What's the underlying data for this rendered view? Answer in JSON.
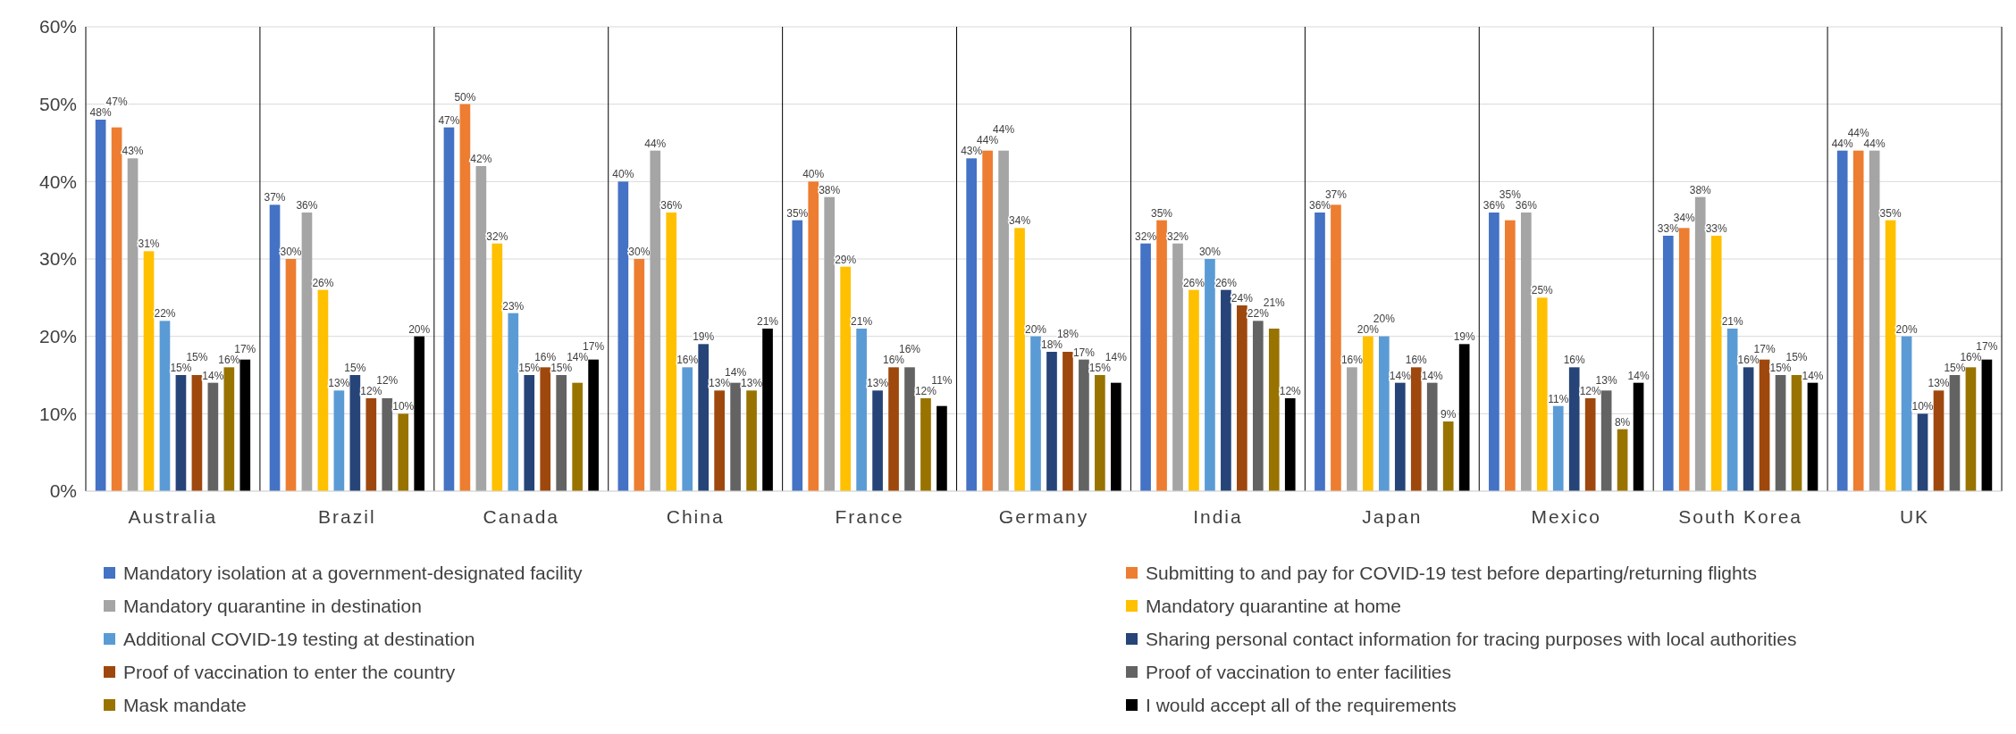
{
  "chart_data": {
    "type": "bar",
    "categories": [
      "Australia",
      "Brazil",
      "Canada",
      "China",
      "France",
      "Germany",
      "India",
      "Japan",
      "Mexico",
      "South Korea",
      "UK"
    ],
    "series": [
      {
        "name": "Mandatory isolation at a government-designated facility",
        "color": "#4472c4",
        "values": [
          0.48,
          0.37,
          0.47,
          0.4,
          0.35,
          0.43,
          0.32,
          0.36,
          0.36,
          0.33,
          0.44
        ]
      },
      {
        "name": "Submitting to and pay for COVID-19 test before departing/returning flights",
        "color": "#ed7d31",
        "values": [
          0.47,
          0.3,
          0.5,
          0.3,
          0.4,
          0.44,
          0.35,
          0.37,
          0.35,
          0.34,
          0.44
        ]
      },
      {
        "name": "Mandatory quarantine in destination",
        "color": "#a5a5a5",
        "values": [
          0.43,
          0.36,
          0.42,
          0.44,
          0.38,
          0.44,
          0.32,
          0.16,
          0.36,
          0.38,
          0.44
        ]
      },
      {
        "name": "Mandatory quarantine at home",
        "color": "#ffc000",
        "values": [
          0.31,
          0.26,
          0.32,
          0.36,
          0.29,
          0.34,
          0.26,
          0.2,
          0.25,
          0.33,
          0.35
        ]
      },
      {
        "name": "Additional COVID-19 testing at destination",
        "color": "#5b9bd5",
        "values": [
          0.22,
          0.13,
          0.23,
          0.16,
          0.21,
          0.2,
          0.3,
          0.2,
          0.11,
          0.21,
          0.2
        ]
      },
      {
        "name": "Sharing personal contact information for tracing purposes with local authorities",
        "color": "#264478",
        "values": [
          0.15,
          0.15,
          0.15,
          0.19,
          0.13,
          0.18,
          0.26,
          0.14,
          0.16,
          0.16,
          0.1
        ]
      },
      {
        "name": "Proof of vaccination to enter the country",
        "color": "#9e480e",
        "values": [
          0.15,
          0.12,
          0.16,
          0.13,
          0.16,
          0.18,
          0.24,
          0.16,
          0.12,
          0.17,
          0.13
        ]
      },
      {
        "name": "Proof of vaccination to enter facilities",
        "color": "#636363",
        "values": [
          0.14,
          0.12,
          0.15,
          0.14,
          0.16,
          0.17,
          0.22,
          0.14,
          0.13,
          0.15,
          0.15
        ]
      },
      {
        "name": "Mask mandate",
        "color": "#997300",
        "values": [
          0.16,
          0.1,
          0.14,
          0.13,
          0.12,
          0.15,
          0.21,
          0.09,
          0.08,
          0.15,
          0.16
        ]
      },
      {
        "name": "I would accept all of the requirements",
        "color": "#000000",
        "values": [
          0.17,
          0.2,
          0.17,
          0.21,
          0.11,
          0.14,
          0.12,
          0.19,
          0.14,
          0.14,
          0.17
        ]
      }
    ],
    "ylim": [
      0,
      0.6
    ],
    "yticks": [
      {
        "value": 0,
        "label": "0%"
      },
      {
        "value": 0.1,
        "label": "10%"
      },
      {
        "value": 0.2,
        "label": "20%"
      },
      {
        "value": 0.3,
        "label": "30%"
      },
      {
        "value": 0.4,
        "label": "40%"
      },
      {
        "value": 0.5,
        "label": "50%"
      },
      {
        "value": 0.6,
        "label": "60%"
      }
    ],
    "value_labels": [
      [
        "48%",
        "37%",
        "47%",
        "40%",
        "35%",
        "43%",
        "32%",
        "36%",
        "36%",
        "33%",
        "44%"
      ],
      [
        "47%",
        "30%",
        "50%",
        "30%",
        "40%",
        "44%",
        "35%",
        "37%",
        "35%",
        "34%",
        "44%"
      ],
      [
        "43%",
        "36%",
        "42%",
        "44%",
        "38%",
        "44%",
        "32%",
        "16%",
        "36%",
        "38%",
        "44%"
      ],
      [
        "31%",
        "26%",
        "32%",
        "36%",
        "29%",
        "34%",
        "26%",
        "20%",
        "25%",
        "33%",
        "35%"
      ],
      [
        "22%",
        "13%",
        "23%",
        "16%",
        "21%",
        "20%",
        "30%",
        "20%",
        "11%",
        "21%",
        "20%"
      ],
      [
        "15%",
        "15%",
        "15%",
        "19%",
        "13%",
        "18%",
        "26%",
        "14%",
        "16%",
        "16%",
        "10%"
      ],
      [
        "15%",
        "12%",
        "16%",
        "13%",
        "16%",
        "18%",
        "24%",
        "16%",
        "12%",
        "17%",
        "13%"
      ],
      [
        "14%",
        "12%",
        "15%",
        "14%",
        "16%",
        "17%",
        "22%",
        "14%",
        "13%",
        "15%",
        "15%"
      ],
      [
        "16%",
        "10%",
        "14%",
        "13%",
        "12%",
        "15%",
        "21%",
        "9%",
        "8%",
        "15%",
        "16%"
      ],
      [
        "17%",
        "20%",
        "17%",
        "21%",
        "11%",
        "14%",
        "12%",
        "19%",
        "14%",
        "14%",
        "17%"
      ]
    ],
    "grid": "y",
    "legend": "bottom"
  }
}
